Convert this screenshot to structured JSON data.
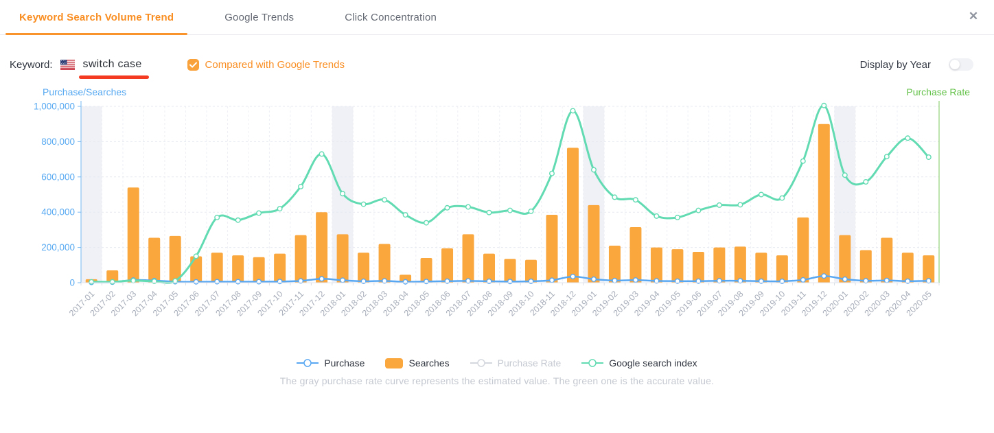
{
  "header": {
    "tabs": [
      {
        "label": "Keyword Search Volume Trend",
        "active": true
      },
      {
        "label": "Google Trends",
        "active": false
      },
      {
        "label": "Click Concentration",
        "active": false
      }
    ],
    "close_icon": "✕"
  },
  "controls": {
    "keyword_label": "Keyword:",
    "keyword_value": "switch case",
    "flag": "us-flag-icon",
    "compare": {
      "label": "Compared with Google Trends",
      "checked": true
    },
    "display_by_year": {
      "label": "Display by Year",
      "on": false
    }
  },
  "chart_data": {
    "type": "combo",
    "title": "",
    "left_axis": {
      "name": "Purchase/Searches",
      "min": 0,
      "max": 1000000,
      "tick_step": 200000,
      "tick_labels": [
        "0",
        "200,000",
        "400,000",
        "600,000",
        "800,000",
        "1,000,000"
      ]
    },
    "right_axis": {
      "name": "Purchase Rate"
    },
    "grid": true,
    "legend_position": "bottom",
    "categories": [
      "2017-01",
      "2017-02",
      "2017-03",
      "2017-04",
      "2017-05",
      "2017-06",
      "2017-07",
      "2017-08",
      "2017-09",
      "2017-10",
      "2017-11",
      "2017-12",
      "2018-01",
      "2018-02",
      "2018-03",
      "2018-04",
      "2018-05",
      "2018-06",
      "2018-07",
      "2018-08",
      "2018-09",
      "2018-10",
      "2018-11",
      "2018-12",
      "2019-01",
      "2019-02",
      "2019-03",
      "2019-04",
      "2019-05",
      "2019-06",
      "2019-07",
      "2019-08",
      "2019-09",
      "2019-10",
      "2019-11",
      "2019-12",
      "2020-01",
      "2020-02",
      "2020-03",
      "2020-04",
      "2020-05"
    ],
    "highlight_band_indices": [
      0,
      12,
      24,
      36
    ],
    "series": [
      {
        "name": "Purchase",
        "type": "line",
        "color": "#58a7f2",
        "values": [
          2000,
          3000,
          15000,
          12000,
          6000,
          5000,
          6000,
          6000,
          6000,
          7000,
          10000,
          22000,
          14000,
          8000,
          10000,
          5000,
          7000,
          9000,
          10000,
          8000,
          7000,
          8000,
          14000,
          35000,
          20000,
          12000,
          15000,
          10000,
          9000,
          9000,
          11000,
          11000,
          9000,
          8000,
          16000,
          38000,
          20000,
          11000,
          13000,
          9000,
          11000
        ]
      },
      {
        "name": "Searches",
        "type": "bar",
        "color": "#faa73e",
        "values": [
          20000,
          70000,
          540000,
          255000,
          265000,
          150000,
          170000,
          155000,
          145000,
          165000,
          270000,
          400000,
          275000,
          170000,
          220000,
          45000,
          140000,
          195000,
          275000,
          165000,
          135000,
          130000,
          385000,
          765000,
          440000,
          210000,
          315000,
          200000,
          190000,
          175000,
          200000,
          205000,
          170000,
          155000,
          370000,
          900000,
          270000,
          185000,
          255000,
          170000,
          155000
        ]
      },
      {
        "name": "Purchase Rate",
        "type": "line",
        "color": "#d4d8de",
        "disabled": true,
        "values": []
      },
      {
        "name": "Google search index",
        "type": "line",
        "color": "#62dbb2",
        "values": [
          5000,
          5000,
          12000,
          8000,
          10000,
          150000,
          370000,
          355000,
          395000,
          420000,
          545000,
          730000,
          505000,
          445000,
          470000,
          385000,
          340000,
          425000,
          430000,
          398000,
          410000,
          405000,
          620000,
          975000,
          640000,
          485000,
          470000,
          378000,
          370000,
          410000,
          440000,
          442000,
          500000,
          480000,
          690000,
          1005000,
          610000,
          572000,
          715000,
          820000,
          712000
        ]
      }
    ]
  },
  "footnote": "The gray purchase rate curve represents the estimated value. The green one is the accurate value."
}
